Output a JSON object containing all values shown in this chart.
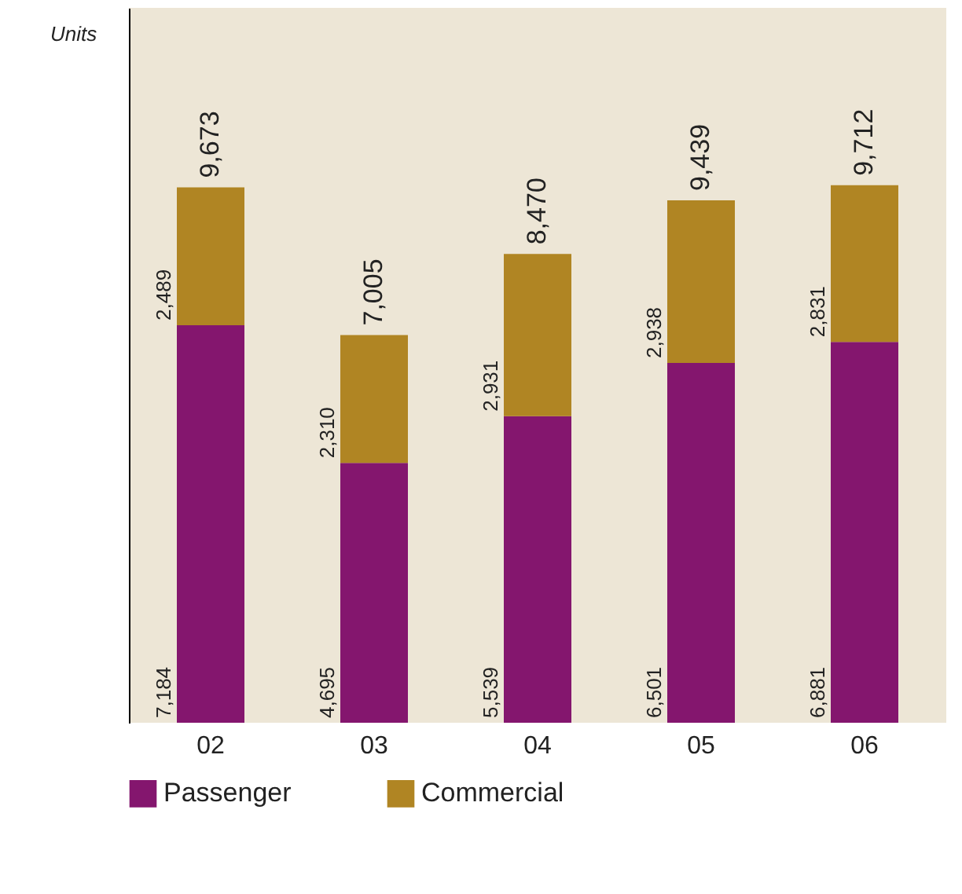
{
  "chart_data": {
    "type": "bar",
    "stacked": true,
    "annotations": [
      "Units"
    ],
    "categories": [
      "02",
      "03",
      "04",
      "05",
      "06"
    ],
    "series": [
      {
        "name": "Passenger",
        "color": "#84166e",
        "values": [
          7184,
          4695,
          5539,
          6501,
          6881
        ],
        "value_labels": [
          "7,184",
          "4,695",
          "5,539",
          "6,501",
          "6,881"
        ]
      },
      {
        "name": "Commercial",
        "color": "#b08523",
        "values": [
          2489,
          2310,
          2931,
          2938,
          2831
        ],
        "value_labels": [
          "2,489",
          "2,310",
          "2,931",
          "2,938",
          "2,831"
        ]
      }
    ],
    "totals": [
      "9,673",
      "7,005",
      "8,470",
      "9,439",
      "9,712"
    ],
    "legend": "bottom",
    "tick_labels": "x",
    "grid": false
  }
}
